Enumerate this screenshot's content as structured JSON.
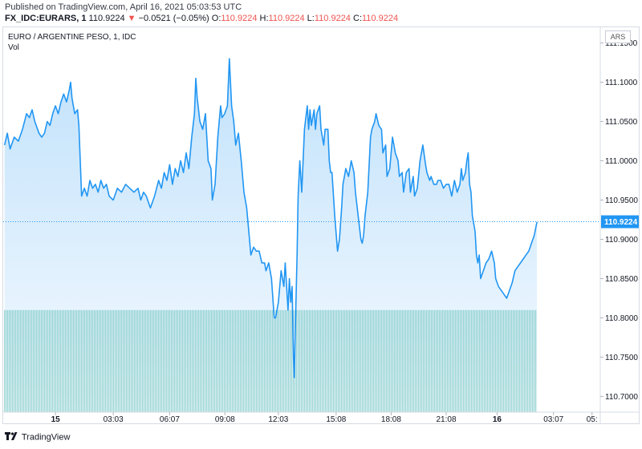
{
  "header": {
    "published": "Published on TradingView.com, April 16, 2021 05:03:53 UTC",
    "symbol": "FX_IDC:EURARS, 1",
    "last": "110.9224",
    "change_arrow": "▼",
    "change": "−0.0521 (−0.05%)",
    "o_label": "O:",
    "o_value": "110.9224",
    "h_label": "H:",
    "h_value": "110.9224",
    "l_label": "L:",
    "l_value": "110.9224",
    "c_label": "C:",
    "c_value": "110.9224"
  },
  "pane": {
    "title": "EURO / ARGENTINE PESO, 1, IDC",
    "vol_label": "Vol",
    "currency": "ARS"
  },
  "footer": {
    "brand": "TradingView",
    "logo_icon": "tradingview-logo-icon"
  },
  "colors": {
    "line": "#2196f3",
    "negative": "#ef5350",
    "volume": "#26a69a",
    "last_price_badge": "#2196f3"
  },
  "chart_data": {
    "type": "area",
    "title": "EURO / ARGENTINE PESO, 1, IDC",
    "ylim": [
      110.68,
      111.17
    ],
    "yticks": [
      "111.1500",
      "111.1000",
      "111.0500",
      "111.0000",
      "110.9500",
      "110.9000",
      "110.8500",
      "110.8000",
      "110.7500",
      "110.7000"
    ],
    "xticks": [
      "15",
      "03:03",
      "06:07",
      "09:08",
      "12:03",
      "15:08",
      "18:08",
      "21:08",
      "16",
      "03:07",
      "05:"
    ],
    "xtick_positions": [
      0.5,
      2.6,
      4.65,
      6.66,
      8.6,
      10.7,
      12.7,
      14.7,
      16.55,
      18.6,
      20
    ],
    "xlim": [
      -1.4,
      20.3
    ],
    "last_value": "110.9224",
    "volume": {
      "value_relative": 1.0,
      "color": "#26a69a"
    },
    "series": [
      {
        "values": [
          [
            -1.35,
            111.02
          ],
          [
            -1.25,
            111.035
          ],
          [
            -1.15,
            111.015
          ],
          [
            -1.0,
            111.03
          ],
          [
            -0.85,
            111.025
          ],
          [
            -0.7,
            111.04
          ],
          [
            -0.55,
            111.06
          ],
          [
            -0.45,
            111.055
          ],
          [
            -0.35,
            111.065
          ],
          [
            -0.25,
            111.05
          ],
          [
            -0.1,
            111.035
          ],
          [
            0.0,
            111.03
          ],
          [
            0.1,
            111.035
          ],
          [
            0.2,
            111.05
          ],
          [
            0.3,
            111.045
          ],
          [
            0.4,
            111.06
          ],
          [
            0.5,
            111.07
          ],
          [
            0.6,
            111.06
          ],
          [
            0.7,
            111.075
          ],
          [
            0.8,
            111.085
          ],
          [
            0.9,
            111.075
          ],
          [
            1.0,
            111.09
          ],
          [
            1.05,
            111.1
          ],
          [
            1.1,
            111.08
          ],
          [
            1.2,
            111.06
          ],
          [
            1.3,
            111.065
          ],
          [
            1.35,
            111.045
          ],
          [
            1.4,
            111.0
          ],
          [
            1.45,
            110.955
          ],
          [
            1.55,
            110.965
          ],
          [
            1.65,
            110.955
          ],
          [
            1.75,
            110.975
          ],
          [
            1.85,
            110.965
          ],
          [
            1.95,
            110.97
          ],
          [
            2.05,
            110.96
          ],
          [
            2.15,
            110.975
          ],
          [
            2.25,
            110.965
          ],
          [
            2.35,
            110.97
          ],
          [
            2.45,
            110.955
          ],
          [
            2.6,
            110.95
          ],
          [
            2.75,
            110.965
          ],
          [
            2.9,
            110.96
          ],
          [
            3.05,
            110.97
          ],
          [
            3.2,
            110.965
          ],
          [
            3.35,
            110.96
          ],
          [
            3.5,
            110.965
          ],
          [
            3.6,
            110.95
          ],
          [
            3.7,
            110.96
          ],
          [
            3.8,
            110.955
          ],
          [
            3.95,
            110.94
          ],
          [
            4.1,
            110.955
          ],
          [
            4.25,
            110.975
          ],
          [
            4.35,
            110.965
          ],
          [
            4.45,
            110.985
          ],
          [
            4.55,
            110.975
          ],
          [
            4.65,
            110.995
          ],
          [
            4.75,
            110.97
          ],
          [
            4.85,
            110.99
          ],
          [
            4.95,
            110.98
          ],
          [
            5.05,
            111.0
          ],
          [
            5.15,
            110.985
          ],
          [
            5.25,
            111.01
          ],
          [
            5.35,
            110.99
          ],
          [
            5.45,
            111.03
          ],
          [
            5.55,
            111.06
          ],
          [
            5.6,
            111.105
          ],
          [
            5.65,
            111.08
          ],
          [
            5.75,
            111.05
          ],
          [
            5.85,
            111.04
          ],
          [
            5.95,
            111.06
          ],
          [
            6.05,
            111.0
          ],
          [
            6.15,
            110.99
          ],
          [
            6.2,
            110.95
          ],
          [
            6.3,
            110.97
          ],
          [
            6.4,
            111.03
          ],
          [
            6.5,
            111.07
          ],
          [
            6.55,
            111.055
          ],
          [
            6.65,
            111.06
          ],
          [
            6.75,
            111.07
          ],
          [
            6.82,
            111.13
          ],
          [
            6.9,
            111.07
          ],
          [
            6.98,
            111.05
          ],
          [
            7.05,
            111.02
          ],
          [
            7.15,
            111.035
          ],
          [
            7.25,
            111.0
          ],
          [
            7.35,
            110.96
          ],
          [
            7.45,
            110.94
          ],
          [
            7.55,
            110.9
          ],
          [
            7.6,
            110.88
          ],
          [
            7.7,
            110.89
          ],
          [
            7.8,
            110.885
          ],
          [
            7.9,
            110.885
          ],
          [
            8.0,
            110.87
          ],
          [
            8.1,
            110.87
          ],
          [
            8.15,
            110.86
          ],
          [
            8.25,
            110.87
          ],
          [
            8.35,
            110.85
          ],
          [
            8.45,
            110.8
          ],
          [
            8.5,
            110.8
          ],
          [
            8.6,
            110.82
          ],
          [
            8.7,
            110.86
          ],
          [
            8.8,
            110.84
          ],
          [
            8.85,
            110.87
          ],
          [
            8.95,
            110.81
          ],
          [
            9.0,
            110.85
          ],
          [
            9.05,
            110.82
          ],
          [
            9.1,
            110.84
          ],
          [
            9.15,
            110.75
          ],
          [
            9.18,
            110.724
          ],
          [
            9.22,
            110.79
          ],
          [
            9.28,
            110.88
          ],
          [
            9.32,
            110.955
          ],
          [
            9.38,
            111.0
          ],
          [
            9.45,
            110.96
          ],
          [
            9.5,
            111.0
          ],
          [
            9.55,
            111.04
          ],
          [
            9.6,
            111.055
          ],
          [
            9.65,
            111.07
          ],
          [
            9.7,
            111.04
          ],
          [
            9.75,
            111.065
          ],
          [
            9.8,
            111.045
          ],
          [
            9.85,
            111.055
          ],
          [
            9.9,
            111.065
          ],
          [
            9.95,
            111.04
          ],
          [
            10.0,
            111.06
          ],
          [
            10.1,
            111.07
          ],
          [
            10.15,
            111.04
          ],
          [
            10.25,
            111.02
          ],
          [
            10.3,
            111.04
          ],
          [
            10.4,
            111.04
          ],
          [
            10.45,
            111.0
          ],
          [
            10.5,
            110.985
          ],
          [
            10.55,
            110.985
          ],
          [
            10.65,
            110.93
          ],
          [
            10.75,
            110.885
          ],
          [
            10.82,
            110.9
          ],
          [
            10.9,
            110.94
          ],
          [
            10.95,
            110.97
          ],
          [
            11.05,
            110.99
          ],
          [
            11.15,
            110.98
          ],
          [
            11.25,
            111.0
          ],
          [
            11.35,
            110.985
          ],
          [
            11.4,
            110.96
          ],
          [
            11.5,
            110.93
          ],
          [
            11.6,
            110.9
          ],
          [
            11.65,
            110.895
          ],
          [
            11.7,
            110.905
          ],
          [
            11.75,
            110.93
          ],
          [
            11.85,
            110.96
          ],
          [
            11.95,
            111.03
          ],
          [
            12.0,
            111.04
          ],
          [
            12.1,
            111.05
          ],
          [
            12.15,
            111.06
          ],
          [
            12.25,
            111.045
          ],
          [
            12.35,
            111.04
          ],
          [
            12.4,
            111.01
          ],
          [
            12.5,
            111.02
          ],
          [
            12.55,
            110.98
          ],
          [
            12.65,
            110.99
          ],
          [
            12.75,
            111.03
          ],
          [
            12.85,
            111.01
          ],
          [
            12.95,
            111.0
          ],
          [
            13.0,
            110.98
          ],
          [
            13.1,
            110.985
          ],
          [
            13.15,
            110.96
          ],
          [
            13.25,
            110.985
          ],
          [
            13.35,
            110.99
          ],
          [
            13.4,
            110.96
          ],
          [
            13.5,
            110.98
          ],
          [
            13.55,
            110.955
          ],
          [
            13.65,
            110.965
          ],
          [
            13.75,
            111.0
          ],
          [
            13.85,
            111.02
          ],
          [
            13.95,
            110.995
          ],
          [
            14.0,
            110.985
          ],
          [
            14.1,
            110.975
          ],
          [
            14.15,
            110.98
          ],
          [
            14.25,
            110.97
          ],
          [
            14.35,
            110.97
          ],
          [
            14.4,
            110.975
          ],
          [
            14.5,
            110.975
          ],
          [
            14.6,
            110.965
          ],
          [
            14.7,
            110.97
          ],
          [
            14.8,
            110.97
          ],
          [
            14.9,
            110.955
          ],
          [
            15.0,
            110.975
          ],
          [
            15.1,
            110.96
          ],
          [
            15.2,
            110.97
          ],
          [
            15.25,
            110.99
          ],
          [
            15.3,
            110.975
          ],
          [
            15.4,
            110.985
          ],
          [
            15.45,
            111.0
          ],
          [
            15.5,
            111.01
          ],
          [
            15.55,
            110.97
          ],
          [
            15.6,
            110.96
          ],
          [
            15.65,
            110.93
          ],
          [
            15.7,
            110.92
          ],
          [
            15.75,
            110.91
          ],
          [
            15.8,
            110.88
          ],
          [
            15.85,
            110.87
          ],
          [
            15.9,
            110.88
          ],
          [
            15.95,
            110.85
          ],
          [
            16.05,
            110.86
          ],
          [
            16.15,
            110.87
          ],
          [
            16.25,
            110.875
          ],
          [
            16.35,
            110.885
          ],
          [
            16.45,
            110.87
          ],
          [
            16.5,
            110.85
          ],
          [
            16.6,
            110.84
          ],
          [
            16.7,
            110.835
          ],
          [
            16.8,
            110.83
          ],
          [
            16.9,
            110.825
          ],
          [
            17.0,
            110.835
          ],
          [
            17.1,
            110.845
          ],
          [
            17.2,
            110.86
          ],
          [
            17.3,
            110.865
          ],
          [
            17.4,
            110.87
          ],
          [
            17.5,
            110.875
          ],
          [
            17.6,
            110.88
          ],
          [
            17.7,
            110.885
          ],
          [
            17.8,
            110.895
          ],
          [
            17.9,
            110.905
          ],
          [
            18.0,
            110.922
          ]
        ]
      }
    ]
  }
}
